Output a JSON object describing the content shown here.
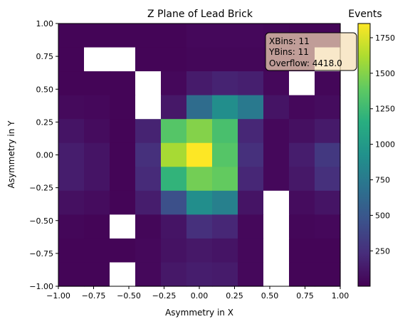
{
  "chart_data": {
    "type": "heatmap",
    "title": "Z Plane of Lead Brick",
    "xlabel": "Asymmetry in X",
    "ylabel": "Asymmetry in Y",
    "xlim": [
      -1.0,
      1.0
    ],
    "ylim": [
      -1.0,
      1.0
    ],
    "x_ticks": [
      "−1.00",
      "−0.75",
      "−0.50",
      "−0.25",
      "0.00",
      "0.25",
      "0.50",
      "0.75",
      "1.00"
    ],
    "y_ticks": [
      "−1.00",
      "−0.75",
      "−0.50",
      "−0.25",
      "0.00",
      "0.25",
      "0.50",
      "0.75",
      "1.00"
    ],
    "x_tick_values": [
      -1.0,
      -0.75,
      -0.5,
      -0.25,
      0.0,
      0.25,
      0.5,
      0.75,
      1.0
    ],
    "y_tick_values": [
      -1.0,
      -0.75,
      -0.5,
      -0.25,
      0.0,
      0.25,
      0.5,
      0.75,
      1.0
    ],
    "nbins_x": 11,
    "nbins_y": 11,
    "colormap": "viridis",
    "colorbar": {
      "label": "Events",
      "min": 1,
      "max": 1850,
      "ticks": [
        250,
        500,
        750,
        1000,
        1250,
        1500,
        1750
      ],
      "tick_labels": [
        "250",
        "500",
        "750",
        "1000",
        "1250",
        "1500",
        "1750"
      ]
    },
    "stats_box": {
      "lines": [
        "XBins: 11",
        "YBins: 11",
        "Overflow: 4418.0"
      ],
      "position": "top-right",
      "facecolor": "#f5deb3"
    },
    "empty_bins_color": "#ffffff",
    "values_rows_top_to_bottom": [
      [
        20,
        20,
        20,
        20,
        20,
        40,
        40,
        40,
        30,
        20,
        20
      ],
      [
        20,
        null,
        null,
        20,
        20,
        30,
        30,
        30,
        20,
        20,
        null
      ],
      [
        20,
        20,
        20,
        null,
        40,
        140,
        180,
        160,
        40,
        null,
        30
      ],
      [
        50,
        40,
        20,
        null,
        120,
        650,
        900,
        750,
        100,
        40,
        60
      ],
      [
        100,
        60,
        20,
        180,
        1350,
        1500,
        1300,
        200,
        40,
        80,
        130
      ],
      [
        150,
        100,
        20,
        250,
        1600,
        1850,
        1350,
        250,
        40,
        150,
        300
      ],
      [
        150,
        100,
        20,
        220,
        1200,
        1450,
        1400,
        200,
        40,
        120,
        250
      ],
      [
        80,
        60,
        20,
        150,
        450,
        900,
        800,
        100,
        null,
        60,
        100
      ],
      [
        30,
        20,
        null,
        30,
        100,
        250,
        200,
        40,
        null,
        30,
        40
      ],
      [
        20,
        20,
        20,
        40,
        90,
        120,
        100,
        40,
        null,
        20,
        20
      ],
      [
        20,
        20,
        null,
        40,
        120,
        150,
        140,
        40,
        null,
        20,
        20
      ]
    ]
  }
}
